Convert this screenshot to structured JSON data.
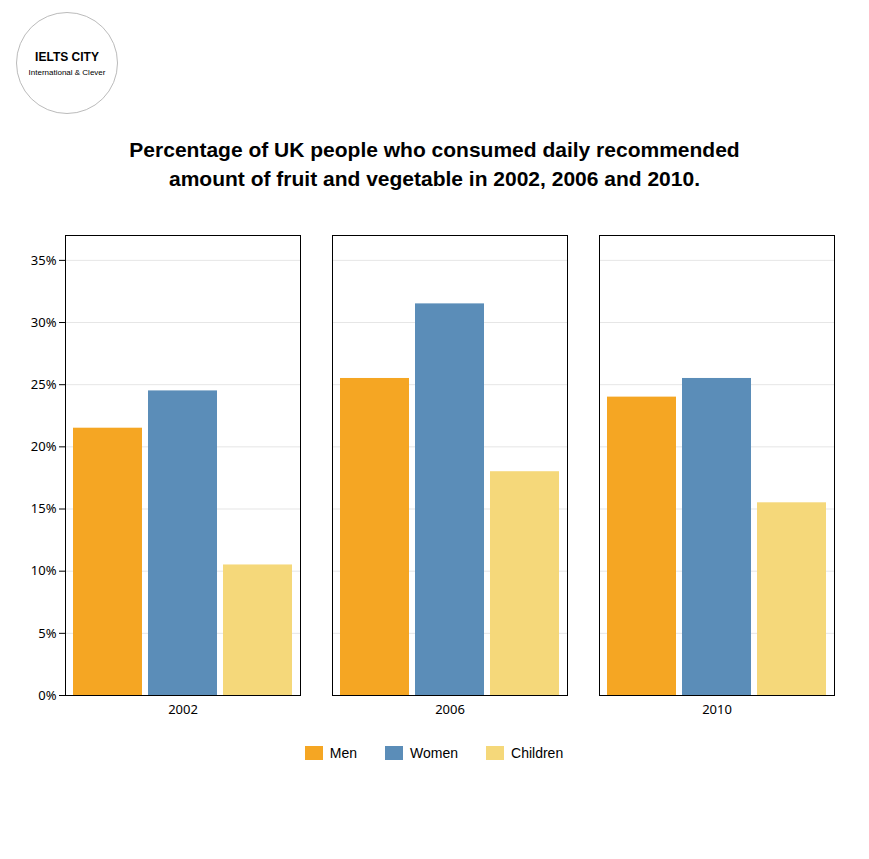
{
  "chart_data": {
    "type": "bar",
    "title": "Percentage of UK people who consumed daily recommended\namount of fruit and vegetable in 2002, 2006 and 2010.",
    "annotations": [
      "IELTS CITY",
      "International & Clever"
    ],
    "categories": [
      "2002",
      "2006",
      "2010"
    ],
    "series": [
      {
        "name": "Men",
        "color": "#F5A623",
        "values": [
          21.5,
          25.5,
          24.0
        ]
      },
      {
        "name": "Women",
        "color": "#5B8DB8",
        "values": [
          24.5,
          31.5,
          25.5
        ]
      },
      {
        "name": "Children",
        "color": "#F5D87A",
        "values": [
          10.5,
          18.0,
          15.5
        ]
      }
    ],
    "ylim": [
      0,
      37
    ],
    "yticks": [
      {
        "value": 0,
        "label": "0%"
      },
      {
        "value": 5,
        "label": "5%"
      },
      {
        "value": 10,
        "label": "10%"
      },
      {
        "value": 15,
        "label": "15%"
      },
      {
        "value": 20,
        "label": "20%"
      },
      {
        "value": 25,
        "label": "25%"
      },
      {
        "value": 30,
        "label": "30%"
      },
      {
        "value": 35,
        "label": "35%"
      }
    ],
    "grid": true,
    "legend": "bottom"
  }
}
